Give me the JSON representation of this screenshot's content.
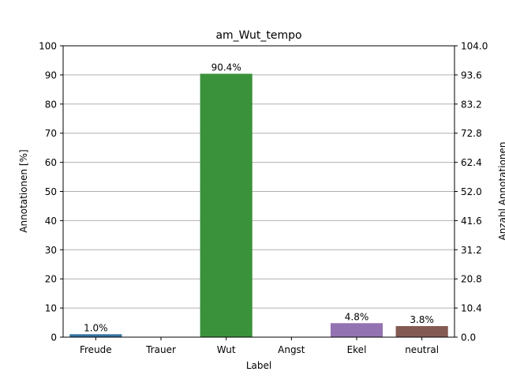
{
  "chart_data": {
    "type": "bar",
    "title": "am_Wut_tempo",
    "xlabel": "Label",
    "ylabel": "Annotationen [%]",
    "ylabel_right": "Anzahl Annotationen",
    "categories": [
      "Freude",
      "Trauer",
      "Wut",
      "Angst",
      "Ekel",
      "neutral"
    ],
    "values": [
      1.0,
      0.0,
      90.4,
      0.0,
      4.8,
      3.8
    ],
    "data_labels": [
      "1.0%",
      "",
      "90.4%",
      "",
      "4.8%",
      "3.8%"
    ],
    "colors": [
      "#3274a1",
      "#e1812c",
      "#3a923a",
      "#c03d3e",
      "#9372b2",
      "#845b53"
    ],
    "ylim": [
      0,
      100
    ],
    "yticks": [
      0,
      10,
      20,
      30,
      40,
      50,
      60,
      70,
      80,
      90,
      100
    ],
    "ylim_right": [
      0,
      104
    ],
    "yticks_right": [
      "0.0",
      "10.4",
      "20.8",
      "31.2",
      "41.6",
      "52.0",
      "62.4",
      "72.8",
      "83.2",
      "93.6",
      "104.0"
    ],
    "grid": true
  }
}
